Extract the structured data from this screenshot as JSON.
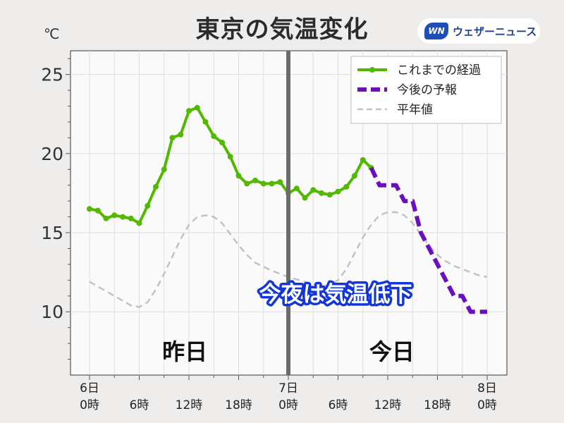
{
  "header": {
    "title": "東京の気温変化",
    "unit": "℃",
    "brand_logo": "WN",
    "brand_name": "ウェザーニュース"
  },
  "colors": {
    "observed": "#52b800",
    "forecast": "#6a0fbf",
    "normal": "#c2c2c2",
    "now_line": "#6b6b6b",
    "annotation_stroke": "#1236d8"
  },
  "chart_data": {
    "type": "line",
    "title": "東京の気温変化",
    "ylabel": "℃",
    "xlim": [
      0,
      48
    ],
    "ylim": [
      6,
      26.5
    ],
    "yticks": [
      10,
      15,
      20,
      25
    ],
    "xticks": [
      {
        "x": 0,
        "line1": "6日",
        "line2": "0時"
      },
      {
        "x": 6,
        "line1": "",
        "line2": "6時"
      },
      {
        "x": 12,
        "line1": "",
        "line2": "12時"
      },
      {
        "x": 18,
        "line1": "",
        "line2": "18時"
      },
      {
        "x": 24,
        "line1": "7日",
        "line2": "0時"
      },
      {
        "x": 30,
        "line1": "",
        "line2": "6時"
      },
      {
        "x": 36,
        "line1": "",
        "line2": "12時"
      },
      {
        "x": 42,
        "line1": "",
        "line2": "18時"
      },
      {
        "x": 48,
        "line1": "8日",
        "line2": "0時"
      }
    ],
    "now_x": 24,
    "day_labels": [
      {
        "text": "昨日",
        "x": 11.5
      },
      {
        "text": "今日",
        "x": 36.5
      }
    ],
    "annotation": "今夜は気温低下",
    "legend_position": "top-right",
    "series": [
      {
        "name": "これまでの経過",
        "style": "observed",
        "x": [
          0,
          1,
          2,
          3,
          4,
          5,
          6,
          7,
          8,
          9,
          10,
          11,
          12,
          13,
          14,
          15,
          16,
          17,
          18,
          19,
          20,
          21,
          22,
          23,
          24,
          25,
          26,
          27,
          28,
          29,
          30,
          31,
          32,
          33,
          34
        ],
        "y": [
          16.5,
          16.4,
          15.9,
          16.1,
          16.0,
          15.9,
          15.6,
          16.7,
          17.9,
          19.0,
          21.0,
          21.2,
          22.7,
          22.9,
          22.0,
          21.1,
          20.7,
          19.8,
          18.6,
          18.1,
          18.3,
          18.1,
          18.1,
          18.2,
          17.5,
          17.8,
          17.2,
          17.7,
          17.5,
          17.4,
          17.6,
          17.9,
          18.6,
          19.6,
          19.1
        ]
      },
      {
        "name": "今後の予報",
        "style": "forecast",
        "x": [
          34,
          35,
          36,
          37,
          38,
          39,
          40,
          41,
          42,
          43,
          44,
          45,
          46,
          47,
          48
        ],
        "y": [
          19.1,
          18.0,
          18.0,
          18.0,
          17.0,
          17.0,
          15.0,
          14.0,
          13.0,
          12.0,
          11.0,
          11.0,
          10.0,
          10.0,
          10.0
        ],
        "step": true
      },
      {
        "name": "平年値",
        "style": "normal",
        "x": [
          0,
          2,
          4,
          5,
          6,
          7,
          8,
          9,
          10,
          11,
          12,
          13,
          14,
          15,
          16,
          17,
          18,
          19,
          20,
          22,
          24,
          26,
          28,
          29,
          30,
          31,
          32,
          33,
          34,
          35,
          36,
          37,
          38,
          39,
          40,
          41,
          42,
          43,
          44,
          45,
          46,
          47,
          48
        ],
        "y": [
          11.9,
          11.3,
          10.7,
          10.4,
          10.3,
          10.6,
          11.4,
          12.4,
          13.5,
          14.6,
          15.5,
          16.0,
          16.1,
          16.0,
          15.6,
          14.9,
          14.2,
          13.6,
          13.1,
          12.6,
          12.2,
          11.9,
          11.6,
          11.7,
          12.0,
          12.7,
          13.7,
          14.7,
          15.5,
          16.1,
          16.3,
          16.3,
          16.1,
          15.6,
          14.9,
          14.2,
          13.6,
          13.2,
          12.9,
          12.7,
          12.5,
          12.3,
          12.2
        ]
      }
    ]
  }
}
